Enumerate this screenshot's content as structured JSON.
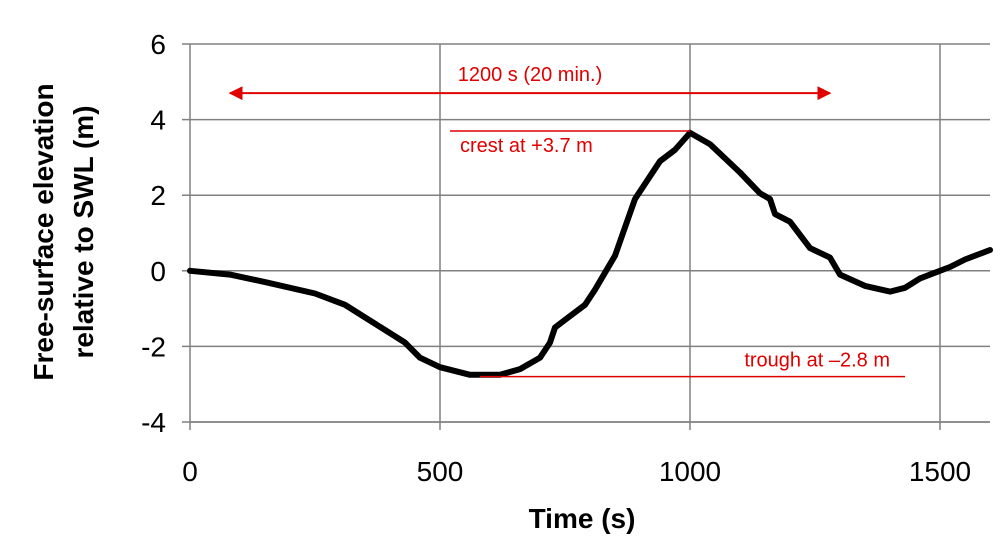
{
  "chart_data": {
    "type": "line",
    "title": "",
    "xlabel": "Time (s)",
    "ylabel": [
      "Free-surface elevation",
      "relative to SWL (m)"
    ],
    "xlim": [
      0,
      1600
    ],
    "ylim": [
      -4,
      6
    ],
    "xticks": [
      0,
      500,
      1000,
      1500
    ],
    "yticks": [
      -4,
      -2,
      0,
      2,
      4,
      6
    ],
    "grid": true,
    "legend": "none",
    "series": [
      {
        "x": [
          0,
          80,
          150,
          250,
          310,
          370,
          430,
          460,
          500,
          560,
          620,
          660,
          700,
          720,
          730,
          750,
          790,
          810,
          850,
          890,
          940,
          970,
          1000,
          1040,
          1100,
          1140,
          1160,
          1170,
          1200,
          1240,
          1280,
          1300,
          1350,
          1400,
          1430,
          1460,
          1490,
          1520,
          1550,
          1600
        ],
        "y": [
          0,
          -0.1,
          -0.3,
          -0.6,
          -0.9,
          -1.4,
          -1.9,
          -2.3,
          -2.55,
          -2.75,
          -2.75,
          -2.6,
          -2.3,
          -1.9,
          -1.5,
          -1.3,
          -0.9,
          -0.5,
          0.4,
          1.9,
          2.9,
          3.2,
          3.65,
          3.35,
          2.6,
          2.05,
          1.9,
          1.5,
          1.3,
          0.6,
          0.35,
          -0.1,
          -0.4,
          -0.55,
          -0.45,
          -0.2,
          -0.05,
          0.1,
          0.3,
          0.55
        ]
      }
    ],
    "annotations": [
      {
        "type": "double-arrow",
        "text": "1200 s (20 min.)",
        "x_start": 80,
        "x_end": 1280,
        "y": 4.7
      },
      {
        "type": "reference-line",
        "text": "crest at +3.7 m",
        "x_start": 520,
        "x_end": 1000,
        "y": 3.7
      },
      {
        "type": "reference-line",
        "text": "trough at –2.8 m",
        "x_start": 580,
        "x_end": 1430,
        "y": -2.8
      }
    ]
  },
  "colors": {
    "series_line": "#000000",
    "annotation": "#e00000",
    "grid": "#808080",
    "axis": "#808080"
  }
}
